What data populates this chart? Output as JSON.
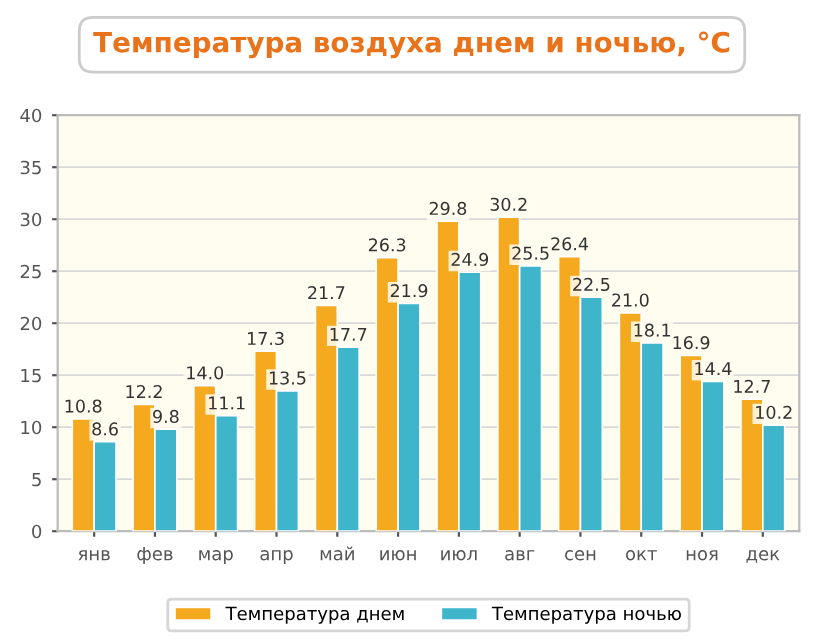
{
  "chart_data": {
    "type": "bar",
    "title": "Температура воздуха днем и ночью, °C",
    "categories": [
      "янв",
      "фев",
      "мар",
      "апр",
      "май",
      "июн",
      "июл",
      "авг",
      "сен",
      "окт",
      "ноя",
      "дек"
    ],
    "series": [
      {
        "name": "Температура днем",
        "color": "#f5a91f",
        "values": [
          10.8,
          12.2,
          14.0,
          17.3,
          21.7,
          26.3,
          29.8,
          30.2,
          26.4,
          21.0,
          16.9,
          12.7
        ]
      },
      {
        "name": "Температура ночью",
        "color": "#3fb5cc",
        "values": [
          8.6,
          9.8,
          11.1,
          13.5,
          17.7,
          21.9,
          24.9,
          25.5,
          22.5,
          18.1,
          14.4,
          10.2
        ]
      }
    ],
    "value_labels": [
      [
        "10.8",
        "12.2",
        "14.0",
        "17.3",
        "21.7",
        "26.3",
        "29.8",
        "30.2",
        "26.4",
        "21.0",
        "16.9",
        "12.7"
      ],
      [
        "8.6",
        "9.8",
        "11.1",
        "13.5",
        "17.7",
        "21.9",
        "24.9",
        "25.5",
        "22.5",
        "18.1",
        "14.4",
        "10.2"
      ]
    ],
    "ylim": [
      0,
      40
    ],
    "yticks": [
      0,
      5,
      10,
      15,
      20,
      25,
      30,
      35,
      40
    ],
    "grid": "y",
    "legend": "bottom"
  }
}
